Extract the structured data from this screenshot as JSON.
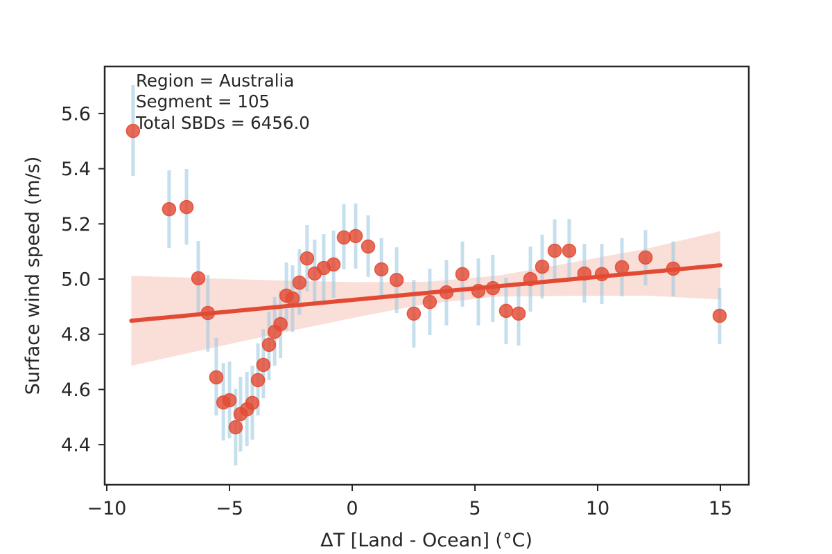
{
  "chart_data": {
    "type": "scatter",
    "title": "",
    "xlabel": "ΔT [Land - Ocean] (°C)",
    "ylabel": "Surface wind speed (m/s)",
    "xlim": [
      -10.2,
      16.2
    ],
    "ylim": [
      4.26,
      5.77
    ],
    "grid": false,
    "xticks": [
      -10,
      -5,
      0,
      5,
      10,
      15
    ],
    "xtick_labels": [
      "−10",
      "−5",
      "0",
      "5",
      "10",
      "15"
    ],
    "yticks": [
      4.4,
      4.6,
      4.8,
      5.0,
      5.2,
      5.4,
      5.6
    ],
    "ytick_labels": [
      "4.4",
      "4.6",
      "4.8",
      "5.0",
      "5.2",
      "5.4",
      "5.6"
    ],
    "annotation_lines": [
      "Region = Australia",
      "Segment = 105",
      "Total SBDs = 6456.0"
    ],
    "series": [
      {
        "name": "binned means",
        "kind": "scatter-errorbar",
        "x": [
          -8.93,
          -7.46,
          -6.75,
          -6.27,
          -5.88,
          -5.54,
          -5.25,
          -5.0,
          -4.75,
          -4.55,
          -4.29,
          -4.07,
          -3.84,
          -3.62,
          -3.39,
          -3.16,
          -2.92,
          -2.68,
          -2.43,
          -2.15,
          -1.84,
          -1.53,
          -1.16,
          -0.76,
          -0.34,
          0.14,
          0.65,
          1.19,
          1.81,
          2.51,
          3.16,
          3.84,
          4.49,
          5.14,
          5.73,
          6.27,
          6.78,
          7.26,
          7.74,
          8.25,
          8.84,
          9.46,
          10.17,
          10.99,
          11.95,
          13.08,
          14.97
        ],
        "y": [
          5.537,
          5.253,
          5.261,
          5.003,
          4.877,
          4.644,
          4.553,
          4.561,
          4.463,
          4.511,
          4.528,
          4.551,
          4.634,
          4.689,
          4.762,
          4.809,
          4.837,
          4.94,
          4.93,
          4.987,
          5.075,
          5.02,
          5.04,
          5.053,
          5.151,
          5.156,
          5.118,
          5.035,
          4.997,
          4.875,
          4.917,
          4.952,
          5.018,
          4.957,
          4.967,
          4.885,
          4.875,
          5.0,
          5.045,
          5.103,
          5.103,
          5.02,
          5.018,
          5.043,
          5.078,
          5.038,
          4.867
        ],
        "y_low": [
          5.374,
          5.113,
          5.125,
          4.87,
          4.737,
          4.506,
          4.415,
          4.423,
          4.325,
          4.375,
          4.395,
          4.418,
          4.506,
          4.568,
          4.634,
          4.686,
          4.714,
          4.814,
          4.809,
          4.87,
          4.955,
          4.902,
          4.922,
          4.932,
          5.035,
          5.038,
          5.008,
          4.925,
          4.877,
          4.752,
          4.797,
          4.832,
          4.9,
          4.832,
          4.844,
          4.764,
          4.759,
          4.882,
          4.93,
          4.995,
          4.995,
          4.915,
          4.91,
          4.937,
          4.977,
          4.937,
          4.764
        ],
        "y_high": [
          5.703,
          5.394,
          5.399,
          5.138,
          5.015,
          4.787,
          4.696,
          4.701,
          4.601,
          4.646,
          4.664,
          4.686,
          4.767,
          4.819,
          4.882,
          4.935,
          4.957,
          5.06,
          5.05,
          5.108,
          5.196,
          5.143,
          5.163,
          5.176,
          5.271,
          5.274,
          5.231,
          5.148,
          5.115,
          4.997,
          5.038,
          5.07,
          5.136,
          5.075,
          5.088,
          5.005,
          4.99,
          5.118,
          5.161,
          5.216,
          5.218,
          5.128,
          5.128,
          5.148,
          5.178,
          5.136,
          4.967
        ]
      },
      {
        "name": "linear fit",
        "kind": "line",
        "x": [
          -9,
          15
        ],
        "y": [
          4.849,
          5.05
        ]
      },
      {
        "name": "95% confidence band",
        "kind": "band",
        "x": [
          -9,
          -6,
          -3,
          0,
          3,
          6,
          9,
          12,
          15
        ],
        "lower": [
          4.686,
          4.745,
          4.803,
          4.859,
          4.91,
          4.937,
          4.939,
          4.94,
          4.926
        ],
        "upper": [
          5.012,
          5.003,
          4.995,
          4.989,
          4.99,
          5.013,
          5.061,
          5.11,
          5.174
        ]
      }
    ],
    "colors": {
      "marker": "#e34a33",
      "errorbar": "#9ecae1",
      "fit_line": "#e34a33",
      "band": "#f8d3cb",
      "axes": "#262626",
      "text": "#262626"
    }
  }
}
